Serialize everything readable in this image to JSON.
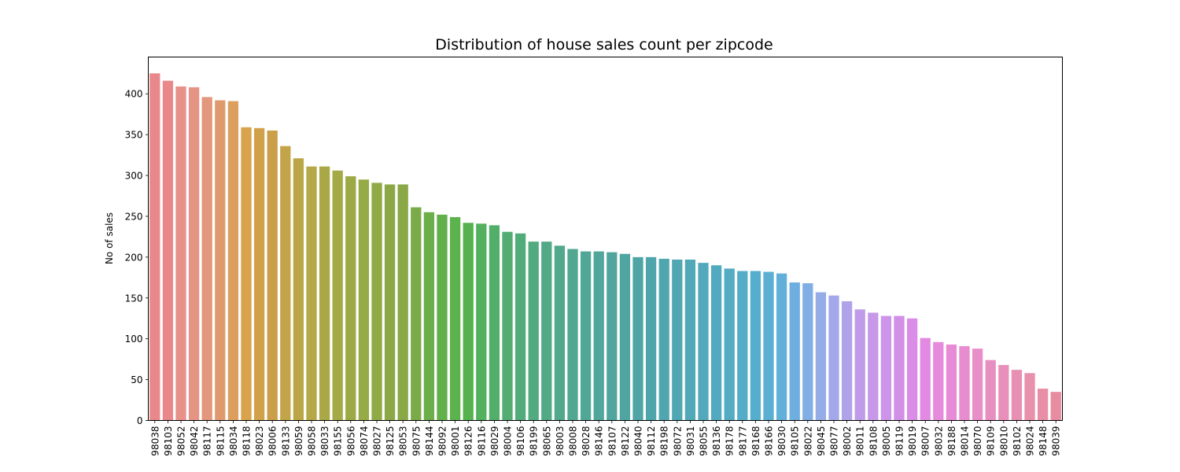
{
  "chart_data": {
    "type": "bar",
    "title": "Distribution of house sales count per zipcode",
    "xlabel": "",
    "ylabel": "No of sales",
    "ylim": [
      0,
      445
    ],
    "yticks": [
      0,
      50,
      100,
      150,
      200,
      250,
      300,
      350,
      400
    ],
    "grid": false,
    "categories": [
      "98038",
      "98103",
      "98052",
      "98042",
      "98117",
      "98115",
      "98034",
      "98118",
      "98023",
      "98006",
      "98133",
      "98059",
      "98058",
      "98033",
      "98155",
      "98056",
      "98074",
      "98027",
      "98125",
      "98053",
      "98075",
      "98144",
      "98092",
      "98001",
      "98126",
      "98116",
      "98029",
      "98004",
      "98106",
      "98199",
      "98065",
      "98003",
      "98008",
      "98028",
      "98146",
      "98107",
      "98122",
      "98040",
      "98112",
      "98198",
      "98072",
      "98031",
      "98055",
      "98136",
      "98178",
      "98177",
      "98168",
      "98166",
      "98030",
      "98105",
      "98022",
      "98045",
      "98077",
      "98002",
      "98011",
      "98108",
      "98005",
      "98119",
      "98019",
      "98007",
      "98032",
      "98188",
      "98014",
      "98070",
      "98109",
      "98010",
      "98102",
      "98024",
      "98148",
      "98039"
    ],
    "values": [
      425,
      416,
      409,
      408,
      396,
      392,
      391,
      359,
      358,
      355,
      336,
      321,
      311,
      311,
      306,
      299,
      295,
      291,
      289,
      289,
      261,
      255,
      252,
      249,
      242,
      241,
      239,
      231,
      229,
      219,
      219,
      214,
      210,
      207,
      207,
      206,
      204,
      200,
      200,
      198,
      197,
      197,
      193,
      190,
      186,
      183,
      183,
      182,
      180,
      169,
      168,
      157,
      153,
      146,
      136,
      132,
      128,
      128,
      125,
      101,
      96,
      93,
      91,
      88,
      74,
      68,
      62,
      58,
      39,
      35
    ],
    "colors": [
      "#e8888a",
      "#e8888a",
      "#e8918a",
      "#e59484",
      "#e3977c",
      "#de9a6e",
      "#dc9f5e",
      "#d9a24c",
      "#d1a14a",
      "#cb9e49",
      "#c3a449",
      "#bba647",
      "#b4a847",
      "#aaa846",
      "#a4aa45",
      "#9ca944",
      "#96aa45",
      "#90aa46",
      "#8ca846",
      "#89a846",
      "#7aab48",
      "#6bae4a",
      "#62b04a",
      "#5cb24c",
      "#55b24e",
      "#53b05e",
      "#52af6a",
      "#53ad72",
      "#52ac79",
      "#52ab80",
      "#51a986",
      "#51a88b",
      "#51a790",
      "#50a795",
      "#50a69a",
      "#50a69e",
      "#4fa5a2",
      "#4fa5a6",
      "#4fa6aa",
      "#50a6ae",
      "#50a7b2",
      "#51a8b6",
      "#52a9bb",
      "#52aac0",
      "#53abc4",
      "#55acc9",
      "#56aece",
      "#5aafd3",
      "#62b0da",
      "#6eaee0",
      "#81aee4",
      "#95ace7",
      "#a2a8e9",
      "#b0a3e9",
      "#bf9ce9",
      "#c798e9",
      "#cc95e9",
      "#d18fe8",
      "#d98de6",
      "#e28ae3",
      "#e68adc",
      "#e88bd6",
      "#e88cd0",
      "#e88ec8",
      "#e88fc1",
      "#e890bb",
      "#e890b4",
      "#e891ad",
      "#e88fa7",
      "#e88ca1"
    ]
  }
}
